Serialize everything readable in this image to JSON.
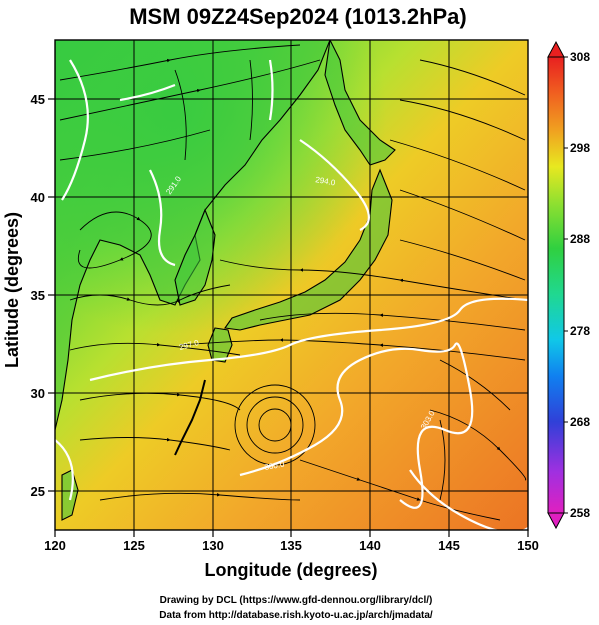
{
  "title": "MSM 09Z24Sep2024 (1013.2hPa)",
  "axes": {
    "xlabel": "Longitude (degrees)",
    "ylabel": "Latitude  (degrees)",
    "xlim": [
      120,
      150
    ],
    "ylim": [
      22.5,
      47.5
    ],
    "xticks": [
      "120",
      "125",
      "130",
      "135",
      "140",
      "145",
      "150"
    ],
    "yticks": [
      "25",
      "30",
      "35",
      "40",
      "45"
    ],
    "grid": true
  },
  "colorbar": {
    "min": 258,
    "max": 308,
    "ticks": [
      "308",
      "298",
      "288",
      "278",
      "268",
      "258"
    ],
    "colors": [
      "#e020c0",
      "#a030e0",
      "#3040d8",
      "#1080f0",
      "#10c8e8",
      "#20d890",
      "#30d040",
      "#90e030",
      "#e8e820",
      "#f0a020",
      "#f06020",
      "#e82020"
    ]
  },
  "colors": {
    "ocean_south": "#f08a28",
    "ocean_mid": "#f3bb2a",
    "land_north": "#40c840",
    "contour": "#ffffff",
    "streamline": "#000000"
  },
  "contour_labels": [
    "291.0",
    "294.0",
    "297.0",
    "300.0",
    "303.0"
  ],
  "credits": {
    "line1": "Drawing by DCL (https://www.gfd-dennou.org/library/dcl/)",
    "line2": "Data from http://database.rish.kyoto-u.ac.jp/arch/jmadata/"
  }
}
